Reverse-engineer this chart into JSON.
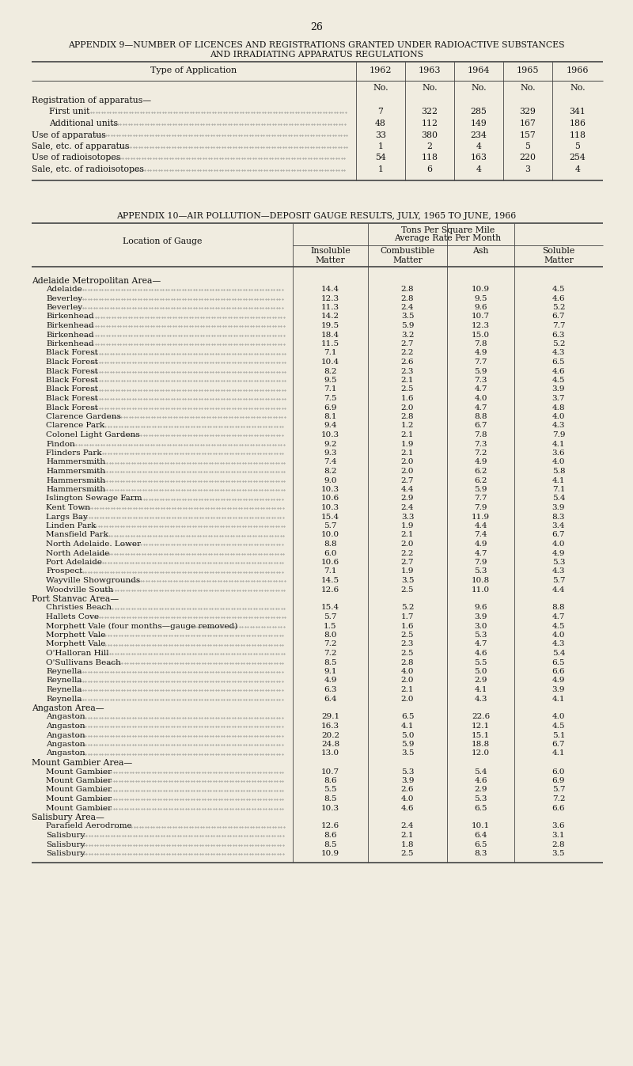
{
  "bg_color": "#f0ece0",
  "text_color": "#1a1a1a",
  "page_number": "26",
  "appendix9": {
    "title1": "APPENDIX 9—NUMBER OF LICENCES AND REGISTRATIONS GRANTED UNDER RADIOACTIVE SUBSTANCES",
    "title2": "AND IRRADIATING APPARATUS REGULATIONS",
    "col_headers": [
      "Type of Application",
      "1962",
      "1963",
      "1964",
      "1965",
      "1966"
    ],
    "subheader": [
      "",
      "No.",
      "No.",
      "No.",
      "No.",
      "No."
    ],
    "rows": [
      [
        "Registration of apparatus—",
        "",
        "",
        "",
        "",
        ""
      ],
      [
        "    First unit",
        "7",
        "322",
        "285",
        "329",
        "341"
      ],
      [
        "    Additional units",
        "48",
        "112",
        "149",
        "167",
        "186"
      ],
      [
        "Use of apparatus",
        "33",
        "380",
        "234",
        "157",
        "118"
      ],
      [
        "Sale, etc. of apparatus",
        "1",
        "2",
        "4",
        "5",
        "5"
      ],
      [
        "Use of radioisotopes",
        "54",
        "118",
        "163",
        "220",
        "254"
      ],
      [
        "Sale, etc. of radioisotopes",
        "1",
        "6",
        "4",
        "3",
        "4"
      ]
    ]
  },
  "appendix10": {
    "title": "APPENDIX 10—AIR POLLUTION—DEPOSIT GAUGE RESULTS, JULY, 1965 TO JUNE, 1966",
    "sub_headers": [
      "Insoluble\nMatter",
      "Combustible\nMatter",
      "Ash",
      "Soluble\nMatter"
    ],
    "sections": [
      {
        "section_header": "Adelaide Metropolitan Area—",
        "rows": [
          [
            "Adelaide",
            "14.4",
            "2.8",
            "10.9",
            "4.5"
          ],
          [
            "Beverley",
            "12.3",
            "2.8",
            "9.5",
            "4.6"
          ],
          [
            "Beverley",
            "11.3",
            "2.4",
            "9.6",
            "5.2"
          ],
          [
            "Birkenhead",
            "14.2",
            "3.5",
            "10.7",
            "6.7"
          ],
          [
            "Birkenhead",
            "19.5",
            "5.9",
            "12.3",
            "7.7"
          ],
          [
            "Birkenhead",
            "18.4",
            "3.2",
            "15.0",
            "6.3"
          ],
          [
            "Birkenhead",
            "11.5",
            "2.7",
            "7.8",
            "5.2"
          ],
          [
            "Black Forest",
            "7.1",
            "2.2",
            "4.9",
            "4.3"
          ],
          [
            "Black Forest",
            "10.4",
            "2.6",
            "7.7",
            "6.5"
          ],
          [
            "Black Forest",
            "8.2",
            "2.3",
            "5.9",
            "4.6"
          ],
          [
            "Black Forest",
            "9.5",
            "2.1",
            "7.3",
            "4.5"
          ],
          [
            "Black Forest",
            "7.1",
            "2.5",
            "4.7",
            "3.9"
          ],
          [
            "Black Forest",
            "7.5",
            "1.6",
            "4.0",
            "3.7"
          ],
          [
            "Black Forest",
            "6.9",
            "2.0",
            "4.7",
            "4.8"
          ],
          [
            "Clarence Gardens",
            "8.1",
            "2.8",
            "8.8",
            "4.0"
          ],
          [
            "Clarence Park",
            "9.4",
            "1.2",
            "6.7",
            "4.3"
          ],
          [
            "Colonel Light Gardens",
            "10.3",
            "2.1",
            "7.8",
            "7.9"
          ],
          [
            "Findon",
            "9.2",
            "1.9",
            "7.3",
            "4.1"
          ],
          [
            "Flinders Park",
            "9.3",
            "2.1",
            "7.2",
            "3.6"
          ],
          [
            "Hammersmith",
            "7.4",
            "2.0",
            "4.9",
            "4.0"
          ],
          [
            "Hammersmith",
            "8.2",
            "2.0",
            "6.2",
            "5.8"
          ],
          [
            "Hammersmith",
            "9.0",
            "2.7",
            "6.2",
            "4.1"
          ],
          [
            "Hammersmith",
            "10.3",
            "4.4",
            "5.9",
            "7.1"
          ],
          [
            "Islington Sewage Farm",
            "10.6",
            "2.9",
            "7.7",
            "5.4"
          ],
          [
            "Kent Town",
            "10.3",
            "2.4",
            "7.9",
            "3.9"
          ],
          [
            "Largs Bay",
            "15.4",
            "3.3",
            "11.9",
            "8.3"
          ],
          [
            "Linden Park",
            "5.7",
            "1.9",
            "4.4",
            "3.4"
          ],
          [
            "Mansfield Park",
            "10.0",
            "2.1",
            "7.4",
            "6.7"
          ],
          [
            "North Adelaide. Lower",
            "8.8",
            "2.0",
            "4.9",
            "4.0"
          ],
          [
            "North Adelaide",
            "6.0",
            "2.2",
            "4.7",
            "4.9"
          ],
          [
            "Port Adelaide",
            "10.6",
            "2.7",
            "7.9",
            "5.3"
          ],
          [
            "Prospect",
            "7.1",
            "1.9",
            "5.3",
            "4.3"
          ],
          [
            "Wayville Showgrounds",
            "14.5",
            "3.5",
            "10.8",
            "5.7"
          ],
          [
            "Woodville South",
            "12.6",
            "2.5",
            "11.0",
            "4.4"
          ]
        ]
      },
      {
        "section_header": "Port Stanvac Area—",
        "rows": [
          [
            "Christies Beach",
            "15.4",
            "5.2",
            "9.6",
            "8.8"
          ],
          [
            "Hallets Cove",
            "5.7",
            "1.7",
            "3.9",
            "4.7"
          ],
          [
            "Morphett Vale (four months—gauge removed)",
            "1.5",
            "1.6",
            "3.0",
            "4.5"
          ],
          [
            "Morphett Vale",
            "8.0",
            "2.5",
            "5.3",
            "4.0"
          ],
          [
            "Morphett Vale",
            "7.2",
            "2.3",
            "4.7",
            "4.3"
          ],
          [
            "O'Halloran Hill",
            "7.2",
            "2.5",
            "4.6",
            "5.4"
          ],
          [
            "O'Sullivans Beach",
            "8.5",
            "2.8",
            "5.5",
            "6.5"
          ],
          [
            "Reynella",
            "9.1",
            "4.0",
            "5.0",
            "6.6"
          ],
          [
            "Reynella",
            "4.9",
            "2.0",
            "2.9",
            "4.9"
          ],
          [
            "Reynella",
            "6.3",
            "2.1",
            "4.1",
            "3.9"
          ],
          [
            "Reynella",
            "6.4",
            "2.0",
            "4.3",
            "4.1"
          ]
        ]
      },
      {
        "section_header": "Angaston Area—",
        "rows": [
          [
            "Angaston",
            "29.1",
            "6.5",
            "22.6",
            "4.0"
          ],
          [
            "Angaston",
            "16.3",
            "4.1",
            "12.1",
            "4.5"
          ],
          [
            "Angaston",
            "20.2",
            "5.0",
            "15.1",
            "5.1"
          ],
          [
            "Angaston",
            "24.8",
            "5.9",
            "18.8",
            "6.7"
          ],
          [
            "Angaston",
            "13.0",
            "3.5",
            "12.0",
            "4.1"
          ]
        ]
      },
      {
        "section_header": "Mount Gambier Area—",
        "rows": [
          [
            "Mount Gambier",
            "10.7",
            "5.3",
            "5.4",
            "6.0"
          ],
          [
            "Mount Gambier",
            "8.6",
            "3.9",
            "4.6",
            "6.9"
          ],
          [
            "Mount Gambier",
            "5.5",
            "2.6",
            "2.9",
            "5.7"
          ],
          [
            "Mount Gambier",
            "8.5",
            "4.0",
            "5.3",
            "7.2"
          ],
          [
            "Mount Gambier",
            "10.3",
            "4.6",
            "6.5",
            "6.6"
          ]
        ]
      },
      {
        "section_header": "Salisbury Area—",
        "rows": [
          [
            "Parafield Aerodrome",
            "12.6",
            "2.4",
            "10.1",
            "3.6"
          ],
          [
            "Salisbury",
            "8.6",
            "2.1",
            "6.4",
            "3.1"
          ],
          [
            "Salisbury",
            "8.5",
            "1.8",
            "6.5",
            "2.8"
          ],
          [
            "Salisbury",
            "10.9",
            "2.5",
            "8.3",
            "3.5"
          ]
        ]
      }
    ]
  }
}
